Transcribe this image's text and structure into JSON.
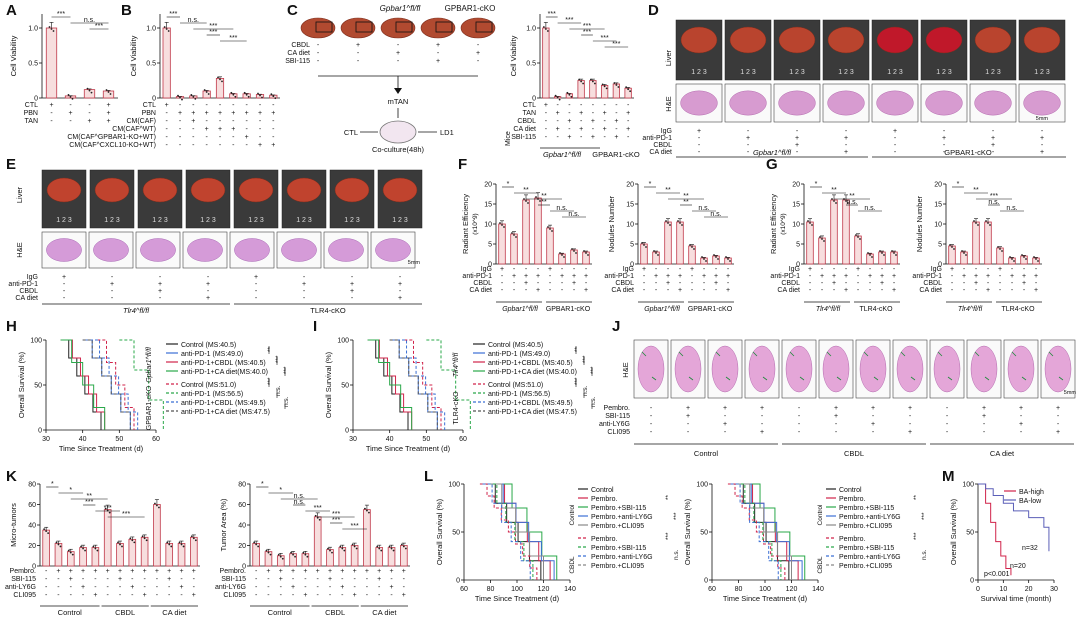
{
  "panels": {
    "A": {
      "label": "A",
      "ylabel": "Cell Viability",
      "rows": [
        "CTL",
        "PBN",
        "TAN"
      ],
      "marks": [
        [
          "+",
          "-",
          "-",
          "+"
        ],
        [
          "-",
          "+",
          "-",
          "+"
        ],
        [
          "-",
          "-",
          "+",
          "+"
        ]
      ],
      "sig": [
        "***",
        "n.s.",
        "***"
      ],
      "chart_data": {
        "type": "bar",
        "categories": [
          "CTL",
          "PBN",
          "TAN",
          "PBN+TAN"
        ],
        "values": [
          1.0,
          0.03,
          0.12,
          0.1
        ],
        "ylim": [
          0,
          1.2
        ],
        "yticks": [
          "0",
          "0.5",
          "1.0"
        ]
      }
    },
    "B": {
      "label": "B",
      "ylabel": "Cell Viability",
      "rows": [
        "CTL",
        "PBN",
        "CM(CAF)",
        "CM(CAF^WT)",
        "CM(CAF^GPBAR1-KO+WT)",
        "CM(CAF^CXCL10-KO+WT)"
      ],
      "marks": [
        [
          "+",
          "-",
          "-",
          "-",
          "-",
          "-",
          "-",
          "-",
          "-"
        ],
        [
          "-",
          "+",
          "+",
          "+",
          "+",
          "+",
          "+",
          "+",
          "+"
        ],
        [
          "-",
          "-",
          "+",
          "-",
          "-",
          "-",
          "-",
          "-",
          "-"
        ],
        [
          "-",
          "-",
          "-",
          "+",
          "+",
          "+",
          "-",
          "-",
          "-"
        ],
        [
          "-",
          "-",
          "-",
          "-",
          "-",
          "-",
          "+",
          "-",
          "-"
        ],
        [
          "-",
          "-",
          "-",
          "-",
          "-",
          "-",
          "-",
          "+",
          "+"
        ]
      ],
      "sig": [
        "***",
        "n.s.",
        "***",
        "***",
        "***"
      ],
      "chart_data": {
        "type": "bar",
        "values": [
          1.0,
          0.02,
          0.03,
          0.1,
          0.28,
          0.06,
          0.06,
          0.05,
          0.04
        ],
        "ylim": [
          0,
          1.2
        ],
        "yticks": [
          "0",
          "0.5",
          "1.0"
        ]
      }
    },
    "C": {
      "label": "C",
      "title_ko": "Gpbar1^fl/fl",
      "title_cko": "GPBAR1-cKO",
      "rows": [
        "CBDL",
        "CA diet",
        "SBI-115"
      ],
      "marks": [
        [
          "-",
          "+",
          "-",
          "+",
          "-"
        ],
        [
          "-",
          "-",
          "+",
          "-",
          "+"
        ],
        [
          "-",
          "-",
          "-",
          "+",
          "-"
        ]
      ],
      "flow": [
        "mTAN",
        "CTL",
        "LD1",
        "Co-culture(48h)"
      ],
      "bar": {
        "ylabel": "Cell Viability",
        "rows": [
          "CTL",
          "TAN",
          "CBDL",
          "CA diet",
          "SBI-115"
        ],
        "mice_label": "Mice",
        "group1": "Gpbar1^fl/fl",
        "group2": "GPBAR1-cKO",
        "sig": [
          "***",
          "***",
          "***",
          "***",
          "***",
          "***"
        ],
        "chart_data": {
          "type": "bar",
          "values": [
            1.0,
            0.02,
            0.06,
            0.25,
            0.25,
            0.18,
            0.2,
            0.14
          ],
          "ylim": [
            0,
            1.2
          ],
          "yticks": [
            "0",
            "0.5",
            "1.0"
          ]
        }
      }
    },
    "D": {
      "label": "D",
      "row1": "Liver",
      "row2": "H&E",
      "rows": [
        "IgG",
        "anti-PD-1",
        "CBDL",
        "CA diet"
      ],
      "group1": "Gpbar1^fl/fl",
      "group2": "GPBAR1-cKO",
      "scale": "5mm",
      "ruler": "1 2 3"
    },
    "E": {
      "label": "E",
      "row1": "Liver",
      "row2": "H&E",
      "rows": [
        "IgG",
        "anti-PD-1",
        "CBDL",
        "CA diet"
      ],
      "group1": "Tlr4^fl/fl",
      "group2": "TLR4-cKO",
      "scale": "5mm",
      "ruler": "1 2 3"
    },
    "F": {
      "label": "F",
      "left": {
        "ylabel": "Radiant Efficiency",
        "yunit": "(x10^9)",
        "yticks": [
          "0",
          "5",
          "10",
          "15",
          "20"
        ],
        "sig": [
          "*",
          "**",
          "**",
          "**",
          "n.s.",
          "n.s."
        ],
        "chart_data": {
          "type": "bar",
          "values": [
            10,
            7.5,
            16,
            16.5,
            9,
            2.5,
            3.5,
            3
          ],
          "ylim": [
            0,
            20
          ]
        }
      },
      "right": {
        "ylabel": "Nodules Number",
        "yticks": [
          "0",
          "5",
          "10",
          "15",
          "20"
        ],
        "sig": [
          "*",
          "**",
          "**",
          "**",
          "n.s.",
          "n.s."
        ],
        "chart_data": {
          "type": "bar",
          "values": [
            5,
            3,
            10.5,
            10.5,
            4.5,
            1.5,
            2,
            1.5
          ],
          "ylim": [
            0,
            20
          ]
        }
      },
      "rows": [
        "IgG",
        "anti-PD-1",
        "CBDL",
        "CA diet"
      ],
      "group1": "Gpbar1^fl/fl",
      "group2": "GPBAR1-cKO"
    },
    "G": {
      "label": "G",
      "left": {
        "ylabel": "Radiant Efficiency",
        "yunit": "(x10^9)",
        "yticks": [
          "0",
          "5",
          "10",
          "15",
          "20"
        ],
        "sig": [
          "*",
          "**",
          "**",
          "n.s.",
          "n.s."
        ],
        "chart_data": {
          "type": "bar",
          "values": [
            10.5,
            6.5,
            16,
            16,
            7,
            2.5,
            3,
            3
          ],
          "ylim": [
            0,
            20
          ]
        }
      },
      "right": {
        "ylabel": "Nodules Number",
        "yticks": [
          "0",
          "5",
          "10",
          "15",
          "20"
        ],
        "sig": [
          "*",
          "**",
          "***",
          "n.s.",
          "n.s."
        ],
        "chart_data": {
          "type": "bar",
          "values": [
            4.5,
            3,
            10.5,
            10.5,
            4,
            1.5,
            2,
            1.5
          ],
          "ylim": [
            0,
            20
          ]
        }
      },
      "rows": [
        "IgG",
        "anti-PD-1",
        "CBDL",
        "CA diet"
      ],
      "group1": "Tlr4^fl/fl",
      "group2": "TLR4-cKO"
    },
    "H": {
      "label": "H",
      "ylabel": "Overall Survival (%)",
      "xlabel": "Time Since Treatment (d)",
      "xticks": [
        "30",
        "40",
        "50",
        "60"
      ],
      "yticks": [
        "0",
        "50",
        "100"
      ],
      "legend": [
        "Control (MS:40.5)",
        "anti-PD-1 (MS:49.0)",
        "anti-PD-1+CBDL (MS:40.5)",
        "anti-PD-1+CA diet(MS:40.0)",
        "Control (MS:51.0)",
        "anti-PD-1 (MS:56.5)",
        "anti-PD-1+CBDL (MS:49.5)",
        "anti-PD-1+CA diet (MS:47.5)"
      ],
      "group1": "Gpbar1^fl/fl",
      "group2": "GPBAR1-cKO",
      "sig": [
        "**",
        "***",
        "***",
        "***",
        "n.s.",
        "n.s."
      ],
      "colors": [
        "#222222",
        "#3b6fd4",
        "#d0234a",
        "#2aa84a",
        "#d0234a",
        "#2aa84a",
        "#3b6fd4",
        "#555555"
      ]
    },
    "I": {
      "label": "I",
      "ylabel": "Overall Survival (%)",
      "xlabel": "Time Since Treatment (d)",
      "xticks": [
        "30",
        "40",
        "50",
        "60"
      ],
      "yticks": [
        "0",
        "50",
        "100"
      ],
      "legend": [
        "Control (MS:40.5)",
        "anti-PD-1 (MS:49.0)",
        "anti-PD-1+CBDL (MS:40.5)",
        "anti-PD-1+CA diet (MS:40.0)",
        "Control (MS:51.0)",
        "anti-PD-1 (MS:56.5)",
        "anti-PD-1+CBDL (MS:49.5)",
        "anti-PD-1+CA diet (MS:47.5)"
      ],
      "group1": "Tlr4^fl/fl",
      "group2": "TLR4-cKO",
      "sig": [
        "**",
        "***",
        "***",
        "***",
        "n.s.",
        "n.s."
      ],
      "colors": [
        "#222222",
        "#3b6fd4",
        "#d0234a",
        "#2aa84a",
        "#d0234a",
        "#2aa84a",
        "#3b6fd4",
        "#555555"
      ]
    },
    "J": {
      "label": "J",
      "row": "H&E",
      "rows": [
        "Pembro.",
        "SBI-115",
        "anti-LY6G",
        "CLI095"
      ],
      "groups": [
        "Control",
        "CBDL",
        "CA diet"
      ],
      "scale": "5mm"
    },
    "K": {
      "label": "K",
      "left": {
        "ylabel": "Micro-tumors",
        "yticks": [
          "0",
          "20",
          "40",
          "60",
          "80"
        ],
        "sig": [
          "*",
          "*",
          "**",
          "***",
          "***",
          "***"
        ],
        "chart_data": {
          "type": "bar",
          "values": [
            35,
            22,
            14,
            18,
            18,
            55,
            22,
            26,
            28,
            60,
            22,
            22,
            28
          ],
          "ylim": [
            0,
            80
          ]
        }
      },
      "right": {
        "ylabel": "Tumor Area (%)",
        "yticks": [
          "0",
          "20",
          "40",
          "60",
          "80"
        ],
        "sig": [
          "*",
          "*",
          "n.s.",
          "n.s.",
          "***",
          "***",
          "***",
          "***"
        ],
        "chart_data": {
          "type": "bar",
          "values": [
            22,
            14,
            10,
            12,
            12,
            48,
            16,
            18,
            20,
            55,
            18,
            18,
            20
          ],
          "ylim": [
            0,
            80
          ]
        }
      },
      "rows": [
        "Pembro.",
        "SBI-115",
        "anti-LY6G",
        "CLI095"
      ],
      "groups": [
        "Control",
        "CBDL",
        "CA diet"
      ]
    },
    "L": {
      "label": "L",
      "ylabel": "Overall Survival (%)",
      "xlabel": "Time Since Treatment (d)",
      "xticks": [
        "60",
        "80",
        "100",
        "120",
        "140"
      ],
      "yticks": [
        "0",
        "50",
        "100"
      ],
      "legend1": [
        "Control",
        "Pembro.",
        "Pembro.+SBI-115",
        "Pembro.+anti-LY6G",
        "Pembro.+CLI095",
        "Pembro.",
        "Pembro.+SBI-115",
        "Pembro.+anti-LY6G",
        "Pembro.+CLI095"
      ],
      "legend2": [
        "Control",
        "Pembro.",
        "Pembro.+SBI-115",
        "Pembro.+anti-LY6G",
        "Pembro.+CLI095",
        "Pembro.",
        "Pembro.+SBI-115",
        "Pembro.+anti-LY6G",
        "Pembro.+CLI095"
      ],
      "g1": "Control",
      "g2": "CBDL",
      "g3": "CA diet",
      "sig": [
        "**",
        "***",
        "***",
        "n.s."
      ],
      "colors": [
        "#222222",
        "#d0234a",
        "#2aa84a",
        "#3b6fd4",
        "#888888"
      ]
    },
    "M": {
      "label": "M",
      "ylabel": "Overall Survival (%)",
      "xlabel": "Survival time (month)",
      "xticks": [
        "0",
        "10",
        "20",
        "30"
      ],
      "yticks": [
        "0",
        "50",
        "100"
      ],
      "legend": [
        "BA-high",
        "BA-low"
      ],
      "n_high": "n=20",
      "n_low": "n=32",
      "p": "p<0.001",
      "colors": [
        "#d0234a",
        "#5b5fb8"
      ]
    }
  }
}
